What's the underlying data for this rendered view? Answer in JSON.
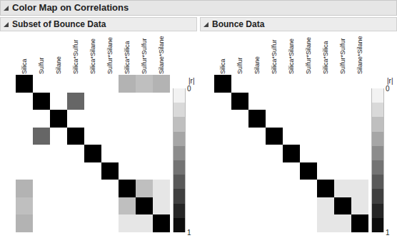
{
  "title": "Color Map on Correlations",
  "chart_data": [
    {
      "type": "heatmap",
      "title": "Subset of Bounce Data",
      "categories": [
        "Silica",
        "Sulfur",
        "Silane",
        "Silica*Sulfur",
        "Silica*Silane",
        "Sulfur*Silane",
        "Silica*Silica",
        "Sulfur*Sulfur",
        "Silane*Silane"
      ],
      "tick_labels": "x",
      "cells": [
        [
          1,
          0,
          0,
          0,
          0,
          0,
          0.3,
          0.25,
          0.3
        ],
        [
          0,
          1,
          0,
          0.6,
          0,
          0,
          0,
          0,
          0
        ],
        [
          0,
          0,
          1,
          0,
          0,
          0,
          0,
          0,
          0
        ],
        [
          0,
          0.6,
          0,
          1,
          0,
          0,
          0,
          0,
          0
        ],
        [
          0,
          0,
          0,
          0,
          1,
          0,
          0,
          0,
          0
        ],
        [
          0,
          0,
          0,
          0,
          0,
          1,
          0,
          0,
          0
        ],
        [
          0.3,
          0,
          0,
          0,
          0,
          0,
          1,
          0.25,
          0.1
        ],
        [
          0.25,
          0,
          0,
          0,
          0,
          0,
          0.25,
          1,
          0.1
        ],
        [
          0.3,
          0,
          0,
          0,
          0,
          0,
          0.1,
          0.1,
          1
        ]
      ],
      "colorbar": {
        "title": "|r|",
        "range": [
          0,
          1
        ],
        "ticks": [
          0,
          1
        ]
      }
    },
    {
      "type": "heatmap",
      "title": "Bounce Data",
      "categories": [
        "Silica",
        "Sulfur",
        "Silane",
        "Silica*Sulfur",
        "Silica*Silane",
        "Sulfur*Silane",
        "Silica*Silica",
        "Sulfur*Sulfur",
        "Silane*Silane"
      ],
      "tick_labels": "x",
      "cells": [
        [
          1,
          0,
          0,
          0,
          0,
          0,
          0,
          0,
          0
        ],
        [
          0,
          1,
          0,
          0,
          0,
          0,
          0,
          0,
          0
        ],
        [
          0,
          0,
          1,
          0,
          0,
          0,
          0,
          0,
          0
        ],
        [
          0,
          0,
          0,
          1,
          0,
          0,
          0,
          0,
          0
        ],
        [
          0,
          0,
          0,
          0,
          1,
          0,
          0,
          0,
          0
        ],
        [
          0,
          0,
          0,
          0,
          0,
          1,
          0,
          0,
          0
        ],
        [
          0,
          0,
          0,
          0,
          0,
          0,
          1,
          0.1,
          0.1
        ],
        [
          0,
          0,
          0,
          0,
          0,
          0,
          0.1,
          1,
          0.1
        ],
        [
          0,
          0,
          0,
          0,
          0,
          0,
          0.1,
          0.1,
          1
        ]
      ],
      "colorbar": {
        "title": "|r|",
        "range": [
          0,
          1
        ],
        "ticks": [
          0,
          1
        ]
      }
    }
  ]
}
